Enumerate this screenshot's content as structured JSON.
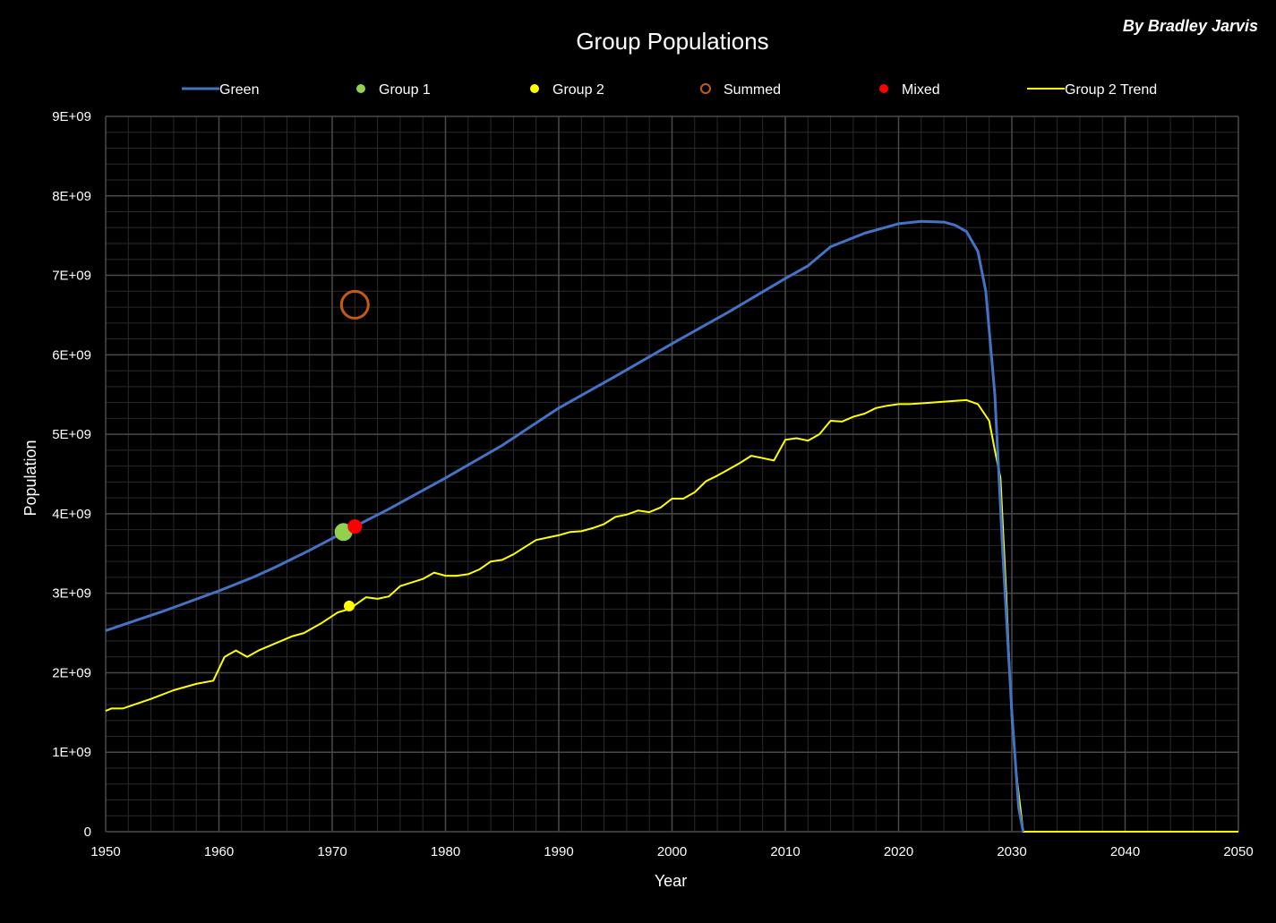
{
  "chart_data": {
    "type": "line",
    "title": "Group Populations",
    "byline": "By Bradley Jarvis",
    "xlabel": "Year",
    "ylabel": "Population",
    "xlim": [
      1950,
      2050
    ],
    "ylim": [
      0,
      9000000000
    ],
    "x_ticks": [
      "1950",
      "1960",
      "1970",
      "1980",
      "1990",
      "2000",
      "2010",
      "2020",
      "2030",
      "2040",
      "2050"
    ],
    "y_ticks": [
      "0",
      "1E+09",
      "2E+09",
      "3E+09",
      "4E+09",
      "5E+09",
      "6E+09",
      "7E+09",
      "8E+09",
      "9E+09"
    ],
    "grid": true,
    "legend_position": "top",
    "background": "#000000",
    "grid_color": "#4a4a4a",
    "series": [
      {
        "name": "Green",
        "kind": "line",
        "color": "#4472C4",
        "points": [
          [
            1950,
            2530000000.0
          ],
          [
            1955,
            2770000000.0
          ],
          [
            1960,
            3030000000.0
          ],
          [
            1963,
            3200000000.0
          ],
          [
            1965,
            3330000000.0
          ],
          [
            1968,
            3540000000.0
          ],
          [
            1970,
            3690000000.0
          ],
          [
            1972,
            3840000000.0
          ],
          [
            1975,
            4060000000.0
          ],
          [
            1980,
            4450000000.0
          ],
          [
            1985,
            4860000000.0
          ],
          [
            1990,
            5330000000.0
          ],
          [
            1995,
            5730000000.0
          ],
          [
            2000,
            6140000000.0
          ],
          [
            2005,
            6540000000.0
          ],
          [
            2010,
            6960000000.0
          ],
          [
            2012,
            7120000000.0
          ],
          [
            2014,
            7360000000.0
          ],
          [
            2017,
            7530000000.0
          ],
          [
            2020,
            7650000000.0
          ],
          [
            2022,
            7680000000.0
          ],
          [
            2024,
            7670000000.0
          ],
          [
            2025,
            7630000000.0
          ],
          [
            2026,
            7550000000.0
          ],
          [
            2027,
            7300000000.0
          ],
          [
            2027.7,
            6800000000.0
          ],
          [
            2028.5,
            5500000000.0
          ],
          [
            2029.2,
            3500000000.0
          ],
          [
            2030,
            1500000000.0
          ],
          [
            2030.6,
            300000000.0
          ],
          [
            2031,
            0
          ]
        ]
      },
      {
        "name": "Group 1",
        "kind": "marker",
        "color": "#92D050",
        "points": [
          [
            1971,
            3770000000.0
          ]
        ]
      },
      {
        "name": "Group 2",
        "kind": "marker",
        "color": "#FFFF00",
        "points": [
          [
            1971.5,
            2840000000.0
          ]
        ]
      },
      {
        "name": "Summed",
        "kind": "hollow-marker",
        "color": "#C55A11",
        "points": [
          [
            1972,
            6630000000.0
          ]
        ]
      },
      {
        "name": "Mixed",
        "kind": "marker",
        "color": "#FF0000",
        "points": [
          [
            1972,
            3840000000.0
          ]
        ]
      },
      {
        "name": "Group 2 Trend",
        "kind": "line",
        "color": "#FFFF00",
        "points": [
          [
            1950,
            1520000000.0
          ],
          [
            1950.5,
            1550000000.0
          ],
          [
            1951.5,
            1550000000.0
          ],
          [
            1954,
            1670000000.0
          ],
          [
            1956,
            1780000000.0
          ],
          [
            1958,
            1860000000.0
          ],
          [
            1959.5,
            1900000000.0
          ],
          [
            1960.5,
            2200000000.0
          ],
          [
            1961.5,
            2280000000.0
          ],
          [
            1962.5,
            2200000000.0
          ],
          [
            1963.5,
            2280000000.0
          ],
          [
            1966.5,
            2460000000.0
          ],
          [
            1967.5,
            2500000000.0
          ],
          [
            1969,
            2620000000.0
          ],
          [
            1970.5,
            2760000000.0
          ],
          [
            1971.5,
            2800000000.0
          ],
          [
            1973,
            2950000000.0
          ],
          [
            1974,
            2930000000.0
          ],
          [
            1975,
            2960000000.0
          ],
          [
            1976,
            3090000000.0
          ],
          [
            1978,
            3180000000.0
          ],
          [
            1979,
            3260000000.0
          ],
          [
            1980,
            3220000000.0
          ],
          [
            1981,
            3220000000.0
          ],
          [
            1982,
            3240000000.0
          ],
          [
            1983,
            3300000000.0
          ],
          [
            1984,
            3400000000.0
          ],
          [
            1985,
            3420000000.0
          ],
          [
            1986,
            3490000000.0
          ],
          [
            1987,
            3580000000.0
          ],
          [
            1988,
            3670000000.0
          ],
          [
            1989,
            3700000000.0
          ],
          [
            1990,
            3730000000.0
          ],
          [
            1991,
            3770000000.0
          ],
          [
            1992,
            3780000000.0
          ],
          [
            1993,
            3820000000.0
          ],
          [
            1994,
            3870000000.0
          ],
          [
            1995,
            3960000000.0
          ],
          [
            1996,
            3990000000.0
          ],
          [
            1997,
            4040000000.0
          ],
          [
            1998,
            4020000000.0
          ],
          [
            1999,
            4080000000.0
          ],
          [
            2000,
            4190000000.0
          ],
          [
            2001,
            4190000000.0
          ],
          [
            2002,
            4270000000.0
          ],
          [
            2003,
            4410000000.0
          ],
          [
            2004,
            4480000000.0
          ],
          [
            2005,
            4560000000.0
          ],
          [
            2006,
            4640000000.0
          ],
          [
            2007,
            4730000000.0
          ],
          [
            2008,
            4700000000.0
          ],
          [
            2009,
            4670000000.0
          ],
          [
            2010,
            4930000000.0
          ],
          [
            2011,
            4950000000.0
          ],
          [
            2012,
            4920000000.0
          ],
          [
            2013,
            5000000000.0
          ],
          [
            2014,
            5170000000.0
          ],
          [
            2015,
            5160000000.0
          ],
          [
            2016,
            5220000000.0
          ],
          [
            2017,
            5260000000.0
          ],
          [
            2018,
            5330000000.0
          ],
          [
            2019,
            5360000000.0
          ],
          [
            2020,
            5380000000.0
          ],
          [
            2021,
            5380000000.0
          ],
          [
            2023,
            5400000000.0
          ],
          [
            2025,
            5420000000.0
          ],
          [
            2026,
            5430000000.0
          ],
          [
            2027,
            5380000000.0
          ],
          [
            2028,
            5170000000.0
          ],
          [
            2028.5,
            4800000000.0
          ],
          [
            2029,
            4450000000.0
          ],
          [
            2029.5,
            3000000000.0
          ],
          [
            2030,
            1400000000.0
          ],
          [
            2030.5,
            600000000.0
          ],
          [
            2031,
            0
          ],
          [
            2050,
            0
          ]
        ]
      }
    ]
  }
}
